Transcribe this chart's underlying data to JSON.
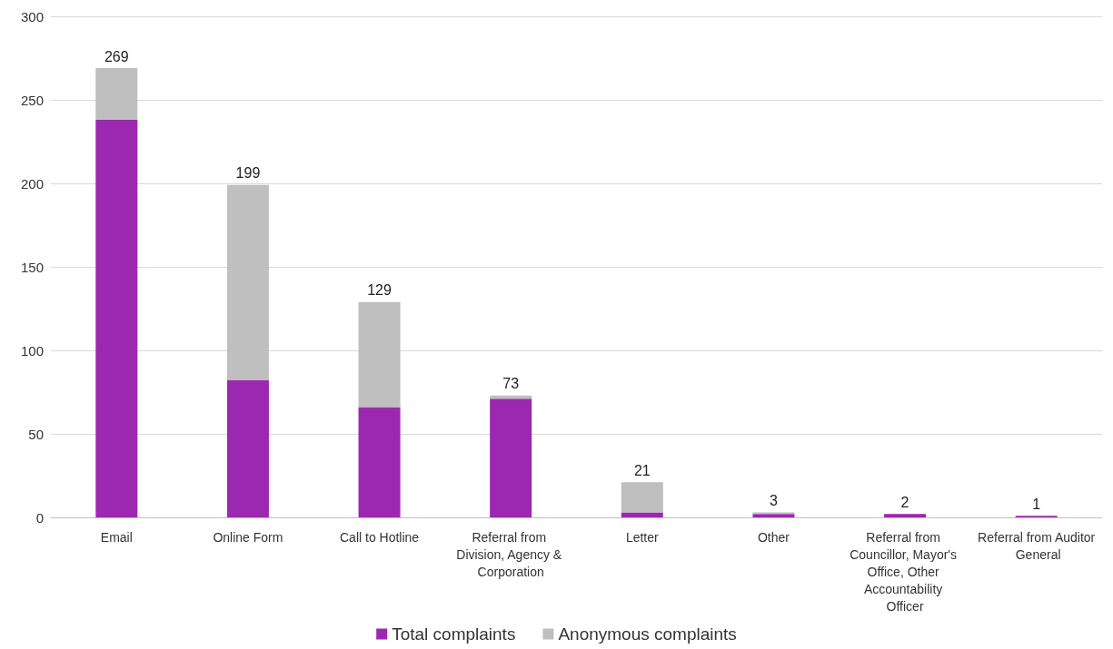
{
  "chart_data": {
    "type": "bar",
    "stacked": true,
    "categories": [
      "Email",
      "Online Form",
      "Call to Hotline",
      "Referral from Division, Agency & Corporation",
      "Letter",
      "Other",
      "Referral from Councillor, Mayor's Office, Other Accountability Officer",
      "Referral from Auditor General"
    ],
    "series": [
      {
        "name": "Total complaints",
        "color": "#9c27b0",
        "values": [
          238,
          82,
          66,
          71,
          3,
          2,
          2,
          1
        ]
      },
      {
        "name": "Anonymous complaints",
        "color": "#bfbfbf",
        "values": [
          31,
          117,
          63,
          2,
          18,
          1,
          0,
          0
        ]
      }
    ],
    "totals": [
      "269",
      "199",
      "129",
      "73",
      "21",
      "3",
      "2",
      "1"
    ],
    "ylim": [
      0,
      300
    ],
    "yticks": [
      0,
      50,
      100,
      150,
      200,
      250,
      300
    ],
    "grid": "y",
    "legend": "bottom"
  }
}
